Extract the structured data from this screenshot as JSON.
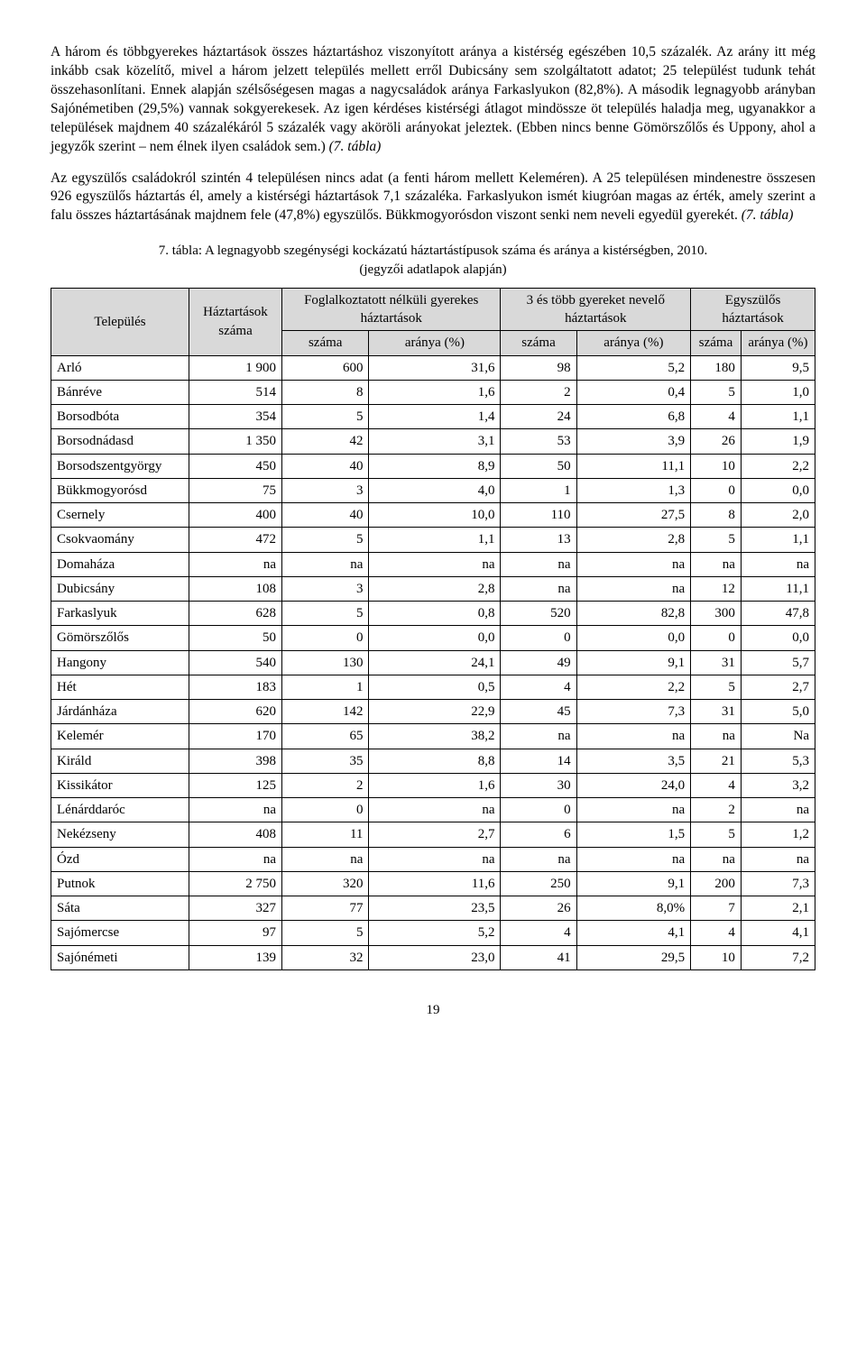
{
  "paragraphs": {
    "p1": "A három és többgyerekes háztartások összes háztartáshoz viszonyított aránya a kistérség egészében 10,5 százalék. Az arány itt még inkább csak közelítő, mivel a három jelzett település mellett erről Dubicsány sem szolgáltatott adatot; 25 települést tudunk tehát összehasonlítani. Ennek alapján szélsőségesen magas a nagycsaládok aránya Farkaslyukon (82,8%). A második legnagyobb arányban Sajónémetiben (29,5%) vannak sokgyerekesek. Az igen kérdéses kistérségi átlagot mindössze öt település haladja meg, ugyanakkor a települések majdnem 40 százalékáról 5 százalék vagy aköröli arányokat jeleztek. (Ebben nincs benne Gömörszőlős és Uppony, ahol a jegyzők szerint – nem élnek ilyen családok sem.) ",
    "p1_tail": "(7. tábla)",
    "p2": "Az egyszülős családokról szintén 4 településen nincs adat (a fenti három mellett Keleméren). A 25 településen mindenestre összesen 926 egyszülős háztartás él, amely a kistérségi háztartások 7,1 százaléka. Farkaslyukon ismét kiugróan magas az érték, amely szerint a falu összes háztartásának majdnem fele (47,8%) egyszülős. Bükkmogyorósdon viszont senki nem neveli egyedül gyerekét. ",
    "p2_tail": "(7. tábla)"
  },
  "table": {
    "caption_line1": "7. tábla: A legnagyobb szegénységi kockázatú háztartástípusok száma és aránya a kistérségben, 2010.",
    "caption_line2": "(jegyzői adatlapok alapján)",
    "header": {
      "col1": "Település",
      "col2": "Háztartások száma",
      "group1": "Foglalkoztatott nélküli gyerekes háztartások",
      "group2": "3 és több gyereket nevelő háztartások",
      "group3": "Egyszülős háztartások",
      "sub_count": "száma",
      "sub_ratio": "aránya (%)"
    },
    "rows": [
      [
        "Arló",
        "1 900",
        "600",
        "31,6",
        "98",
        "5,2",
        "180",
        "9,5"
      ],
      [
        "Bánréve",
        "514",
        "8",
        "1,6",
        "2",
        "0,4",
        "5",
        "1,0"
      ],
      [
        "Borsodbóta",
        "354",
        "5",
        "1,4",
        "24",
        "6,8",
        "4",
        "1,1"
      ],
      [
        "Borsodnádasd",
        "1 350",
        "42",
        "3,1",
        "53",
        "3,9",
        "26",
        "1,9"
      ],
      [
        "Borsodszentgyörgy",
        "450",
        "40",
        "8,9",
        "50",
        "11,1",
        "10",
        "2,2"
      ],
      [
        "Bükkmogyorósd",
        "75",
        "3",
        "4,0",
        "1",
        "1,3",
        "0",
        "0,0"
      ],
      [
        "Csernely",
        "400",
        "40",
        "10,0",
        "110",
        "27,5",
        "8",
        "2,0"
      ],
      [
        "Csokvaomány",
        "472",
        "5",
        "1,1",
        "13",
        "2,8",
        "5",
        "1,1"
      ],
      [
        "Domaháza",
        "na",
        "na",
        "na",
        "na",
        "na",
        "na",
        "na"
      ],
      [
        "Dubicsány",
        "108",
        "3",
        "2,8",
        "na",
        "na",
        "12",
        "11,1"
      ],
      [
        "Farkaslyuk",
        "628",
        "5",
        "0,8",
        "520",
        "82,8",
        "300",
        "47,8"
      ],
      [
        "Gömörszőlős",
        "50",
        "0",
        "0,0",
        "0",
        "0,0",
        "0",
        "0,0"
      ],
      [
        "Hangony",
        "540",
        "130",
        "24,1",
        "49",
        "9,1",
        "31",
        "5,7"
      ],
      [
        "Hét",
        "183",
        "1",
        "0,5",
        "4",
        "2,2",
        "5",
        "2,7"
      ],
      [
        "Járdánháza",
        "620",
        "142",
        "22,9",
        "45",
        "7,3",
        "31",
        "5,0"
      ],
      [
        "Kelemér",
        "170",
        "65",
        "38,2",
        "na",
        "na",
        "na",
        "Na"
      ],
      [
        "Királd",
        "398",
        "35",
        "8,8",
        "14",
        "3,5",
        "21",
        "5,3"
      ],
      [
        "Kissikátor",
        "125",
        "2",
        "1,6",
        "30",
        "24,0",
        "4",
        "3,2"
      ],
      [
        "Lénárddaróc",
        "na",
        "0",
        "na",
        "0",
        "na",
        "2",
        "na"
      ],
      [
        "Nekézseny",
        "408",
        "11",
        "2,7",
        "6",
        "1,5",
        "5",
        "1,2"
      ],
      [
        "Ózd",
        "na",
        "na",
        "na",
        "na",
        "na",
        "na",
        "na"
      ],
      [
        "Putnok",
        "2 750",
        "320",
        "11,6",
        "250",
        "9,1",
        "200",
        "7,3"
      ],
      [
        "Sáta",
        "327",
        "77",
        "23,5",
        "26",
        "8,0%",
        "7",
        "2,1"
      ],
      [
        "Sajómercse",
        "97",
        "5",
        "5,2",
        "4",
        "4,1",
        "4",
        "4,1"
      ],
      [
        "Sajónémeti",
        "139",
        "32",
        "23,0",
        "41",
        "29,5",
        "10",
        "7,2"
      ]
    ]
  },
  "page_number": "19"
}
